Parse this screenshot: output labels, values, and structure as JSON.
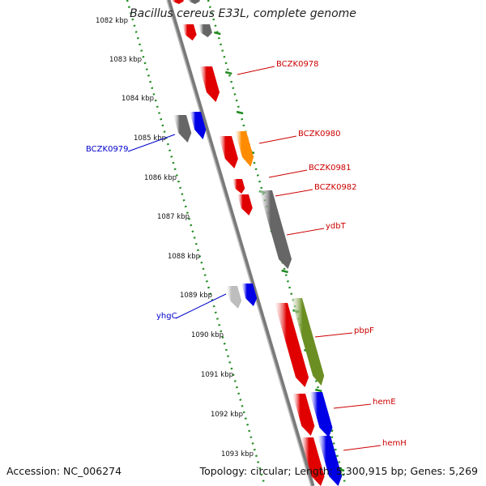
{
  "title": "Bacillus cereus E33L, complete genome",
  "footer": {
    "accession": "Accession: NC_006274",
    "info": "Topology: circular; Length: 5,300,915 bp; Genes: 5,269"
  },
  "colors": {
    "backbone": "#808080",
    "tick_dots": "#228b22",
    "gene_red": "#e00000",
    "gene_gray": "#666666",
    "gene_lightgray": "#bdbdbd",
    "gene_blue": "#0000e6",
    "gene_orange": "#ff8c00",
    "gene_olive": "#6b8e23",
    "label_red": "#cc0000",
    "label_blue": "#0000cc"
  },
  "kbp_ticks": [
    "1082 kbp",
    "1083 kbp",
    "1084 kbp",
    "1085 kbp",
    "1086 kbp",
    "1087 kbp",
    "1088 kbp",
    "1089 kbp",
    "1090 kbp",
    "1091 kbp",
    "1092 kbp",
    "1093 kbp"
  ],
  "gene_labels": [
    {
      "text": "BCZK0978",
      "color": "red"
    },
    {
      "text": "BCZK0980",
      "color": "red"
    },
    {
      "text": "BCZK0981",
      "color": "red"
    },
    {
      "text": "BCZK0982",
      "color": "red"
    },
    {
      "text": "ydbT",
      "color": "red"
    },
    {
      "text": "pbpF",
      "color": "red"
    },
    {
      "text": "hemE",
      "color": "red"
    },
    {
      "text": "hemH",
      "color": "red"
    },
    {
      "text": "BCZK0979",
      "color": "blue"
    },
    {
      "text": "yhgC",
      "color": "blue"
    }
  ],
  "genes": [
    {
      "color": "red"
    },
    {
      "color": "gray"
    },
    {
      "color": "red"
    },
    {
      "color": "gray"
    },
    {
      "color": "red"
    },
    {
      "color": "gray"
    },
    {
      "color": "blue"
    },
    {
      "color": "red"
    },
    {
      "color": "orange"
    },
    {
      "color": "red"
    },
    {
      "color": "red"
    },
    {
      "color": "gray"
    },
    {
      "color": "lightgray"
    },
    {
      "color": "blue"
    },
    {
      "color": "red"
    },
    {
      "color": "olive"
    },
    {
      "color": "red"
    },
    {
      "color": "blue"
    },
    {
      "color": "red"
    },
    {
      "color": "blue"
    }
  ]
}
